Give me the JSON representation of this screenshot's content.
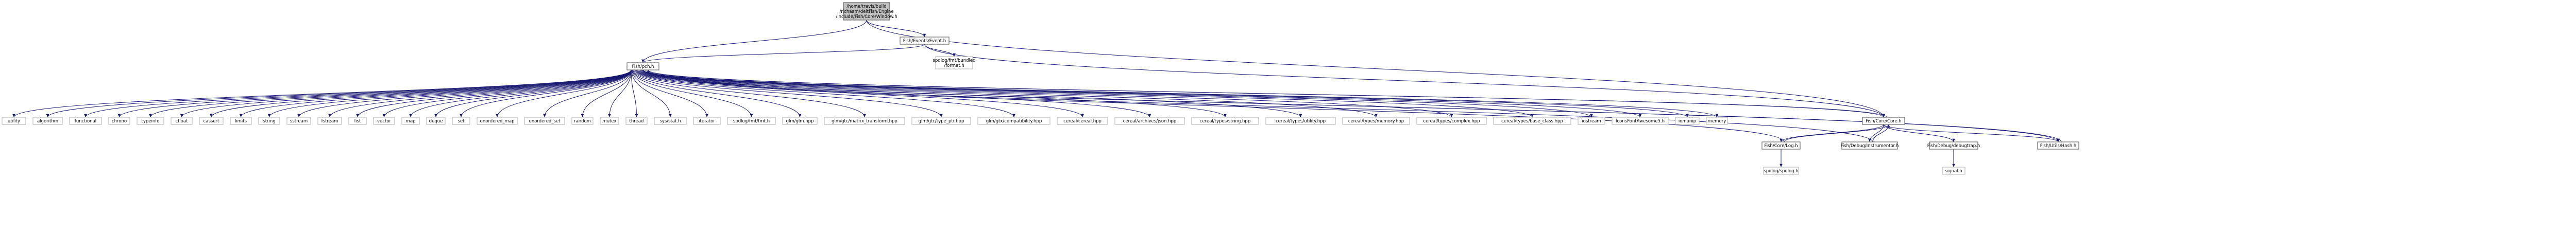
{
  "graph": {
    "nodes": [
      {
        "id": "window",
        "lines": [
          "/home/travis/build",
          "/richaam/deltFish/Engine",
          "/include/Fish/Core/Window.h"
        ],
        "kind": "main"
      },
      {
        "id": "event",
        "lines": [
          "Fish/Events/Event.h"
        ],
        "kind": "link"
      },
      {
        "id": "fishpch",
        "lines": [
          "Fish/pch.h"
        ],
        "kind": "link"
      },
      {
        "id": "spdlog_bundled",
        "lines": [
          "spdlog/fmt/bundled",
          "/format.h"
        ],
        "kind": "ext"
      },
      {
        "id": "utility",
        "lines": [
          "utility"
        ],
        "kind": "ext"
      },
      {
        "id": "algorithm",
        "lines": [
          "algorithm"
        ],
        "kind": "ext"
      },
      {
        "id": "functional",
        "lines": [
          "functional"
        ],
        "kind": "ext"
      },
      {
        "id": "chrono",
        "lines": [
          "chrono"
        ],
        "kind": "ext"
      },
      {
        "id": "typeinfo",
        "lines": [
          "typeinfo"
        ],
        "kind": "ext"
      },
      {
        "id": "cfloat",
        "lines": [
          "cfloat"
        ],
        "kind": "ext"
      },
      {
        "id": "cassert",
        "lines": [
          "cassert"
        ],
        "kind": "ext"
      },
      {
        "id": "limits",
        "lines": [
          "limits"
        ],
        "kind": "ext"
      },
      {
        "id": "string",
        "lines": [
          "string"
        ],
        "kind": "ext"
      },
      {
        "id": "sstream",
        "lines": [
          "sstream"
        ],
        "kind": "ext"
      },
      {
        "id": "fstream",
        "lines": [
          "fstream"
        ],
        "kind": "ext"
      },
      {
        "id": "list",
        "lines": [
          "list"
        ],
        "kind": "ext"
      },
      {
        "id": "vector",
        "lines": [
          "vector"
        ],
        "kind": "ext"
      },
      {
        "id": "map",
        "lines": [
          "map"
        ],
        "kind": "ext"
      },
      {
        "id": "deque",
        "lines": [
          "deque"
        ],
        "kind": "ext"
      },
      {
        "id": "set",
        "lines": [
          "set"
        ],
        "kind": "ext"
      },
      {
        "id": "unordered_map",
        "lines": [
          "unordered_map"
        ],
        "kind": "ext"
      },
      {
        "id": "unordered_set",
        "lines": [
          "unordered_set"
        ],
        "kind": "ext"
      },
      {
        "id": "random",
        "lines": [
          "random"
        ],
        "kind": "ext"
      },
      {
        "id": "mutex",
        "lines": [
          "mutex"
        ],
        "kind": "ext"
      },
      {
        "id": "thread",
        "lines": [
          "thread"
        ],
        "kind": "ext"
      },
      {
        "id": "sys_stat",
        "lines": [
          "sys/stat.h"
        ],
        "kind": "ext"
      },
      {
        "id": "iterator",
        "lines": [
          "iterator"
        ],
        "kind": "ext"
      },
      {
        "id": "spdlog_fmt",
        "lines": [
          "spdlog/fmt/fmt.h"
        ],
        "kind": "ext"
      },
      {
        "id": "glm",
        "lines": [
          "glm/glm.hpp"
        ],
        "kind": "ext"
      },
      {
        "id": "glm_mt",
        "lines": [
          "glm/gtc/matrix_transform.hpp"
        ],
        "kind": "ext"
      },
      {
        "id": "glm_typeptr",
        "lines": [
          "glm/gtc/type_ptr.hpp"
        ],
        "kind": "ext"
      },
      {
        "id": "glm_compat",
        "lines": [
          "glm/gtx/compatibility.hpp"
        ],
        "kind": "ext"
      },
      {
        "id": "cereal",
        "lines": [
          "cereal/cereal.hpp"
        ],
        "kind": "ext"
      },
      {
        "id": "cereal_json",
        "lines": [
          "cereal/archives/json.hpp"
        ],
        "kind": "ext"
      },
      {
        "id": "cereal_string",
        "lines": [
          "cereal/types/string.hpp"
        ],
        "kind": "ext"
      },
      {
        "id": "cereal_utility",
        "lines": [
          "cereal/types/utility.hpp"
        ],
        "kind": "ext"
      },
      {
        "id": "cereal_memory",
        "lines": [
          "cereal/types/memory.hpp"
        ],
        "kind": "ext"
      },
      {
        "id": "cereal_complex",
        "lines": [
          "cereal/types/complex.hpp"
        ],
        "kind": "ext"
      },
      {
        "id": "cereal_base",
        "lines": [
          "cereal/types/base_class.hpp"
        ],
        "kind": "ext"
      },
      {
        "id": "iostream",
        "lines": [
          "iostream"
        ],
        "kind": "ext"
      },
      {
        "id": "iconsfa",
        "lines": [
          "IconsFontAwesome5.h"
        ],
        "kind": "ext"
      },
      {
        "id": "iomanip",
        "lines": [
          "iomanip"
        ],
        "kind": "ext"
      },
      {
        "id": "memory",
        "lines": [
          "memory"
        ],
        "kind": "ext"
      },
      {
        "id": "core",
        "lines": [
          "Fish/Core/Core.h"
        ],
        "kind": "link"
      },
      {
        "id": "hash",
        "lines": [
          "Fish/Utils/Hash.h"
        ],
        "kind": "link"
      },
      {
        "id": "log",
        "lines": [
          "Fish/Core/Log.h"
        ],
        "kind": "link"
      },
      {
        "id": "instrumentor",
        "lines": [
          "Fish/Debug/Instrumentor.h"
        ],
        "kind": "link"
      },
      {
        "id": "debugtrap",
        "lines": [
          "Fish/Debug/debugtrap.h"
        ],
        "kind": "link"
      },
      {
        "id": "spdlog",
        "lines": [
          "spdlog/spdlog.h"
        ],
        "kind": "ext"
      },
      {
        "id": "signal",
        "lines": [
          "signal.h"
        ],
        "kind": "ext"
      }
    ],
    "edges": [
      [
        "window",
        "event"
      ],
      [
        "window",
        "fishpch"
      ],
      [
        "window",
        "core"
      ],
      [
        "event",
        "fishpch"
      ],
      [
        "event",
        "spdlog_bundled"
      ],
      [
        "event",
        "core"
      ],
      [
        "fishpch",
        "utility"
      ],
      [
        "fishpch",
        "algorithm"
      ],
      [
        "fishpch",
        "functional"
      ],
      [
        "fishpch",
        "chrono"
      ],
      [
        "fishpch",
        "typeinfo"
      ],
      [
        "fishpch",
        "cfloat"
      ],
      [
        "fishpch",
        "cassert"
      ],
      [
        "fishpch",
        "limits"
      ],
      [
        "fishpch",
        "string"
      ],
      [
        "fishpch",
        "sstream"
      ],
      [
        "fishpch",
        "fstream"
      ],
      [
        "fishpch",
        "list"
      ],
      [
        "fishpch",
        "vector"
      ],
      [
        "fishpch",
        "map"
      ],
      [
        "fishpch",
        "deque"
      ],
      [
        "fishpch",
        "set"
      ],
      [
        "fishpch",
        "unordered_map"
      ],
      [
        "fishpch",
        "unordered_set"
      ],
      [
        "fishpch",
        "random"
      ],
      [
        "fishpch",
        "mutex"
      ],
      [
        "fishpch",
        "thread"
      ],
      [
        "fishpch",
        "sys_stat"
      ],
      [
        "fishpch",
        "iterator"
      ],
      [
        "fishpch",
        "spdlog_fmt"
      ],
      [
        "fishpch",
        "glm"
      ],
      [
        "fishpch",
        "glm_mt"
      ],
      [
        "fishpch",
        "glm_typeptr"
      ],
      [
        "fishpch",
        "glm_compat"
      ],
      [
        "fishpch",
        "cereal"
      ],
      [
        "fishpch",
        "cereal_json"
      ],
      [
        "fishpch",
        "cereal_string"
      ],
      [
        "fishpch",
        "cereal_utility"
      ],
      [
        "fishpch",
        "cereal_memory"
      ],
      [
        "fishpch",
        "cereal_complex"
      ],
      [
        "fishpch",
        "cereal_base"
      ],
      [
        "fishpch",
        "iostream"
      ],
      [
        "fishpch",
        "iconsfa"
      ],
      [
        "fishpch",
        "iomanip"
      ],
      [
        "fishpch",
        "memory"
      ],
      [
        "fishpch",
        "core"
      ],
      [
        "fishpch",
        "hash"
      ],
      [
        "core",
        "fishpch"
      ],
      [
        "core",
        "log"
      ],
      [
        "core",
        "instrumentor"
      ],
      [
        "core",
        "debugtrap"
      ],
      [
        "core",
        "hash"
      ],
      [
        "log",
        "fishpch"
      ],
      [
        "log",
        "core"
      ],
      [
        "log",
        "spdlog"
      ],
      [
        "instrumentor",
        "fishpch"
      ],
      [
        "instrumentor",
        "core"
      ],
      [
        "debugtrap",
        "signal"
      ],
      [
        "hash",
        "fishpch"
      ]
    ]
  }
}
